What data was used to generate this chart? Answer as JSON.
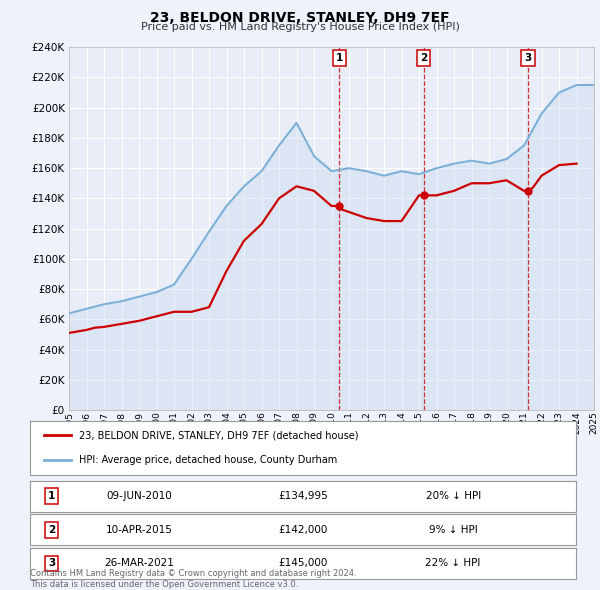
{
  "title": "23, BELDON DRIVE, STANLEY, DH9 7EF",
  "subtitle": "Price paid vs. HM Land Registry's House Price Index (HPI)",
  "bg_color": "#eef2fb",
  "plot_bg_color": "#e8edf8",
  "grid_color": "#ffffff",
  "hpi_color": "#7aaed6",
  "hpi_fill_color": "#c5d8ee",
  "price_color": "#cc0000",
  "ylim": [
    0,
    240000
  ],
  "yticks": [
    0,
    20000,
    40000,
    60000,
    80000,
    100000,
    120000,
    140000,
    160000,
    180000,
    200000,
    220000,
    240000
  ],
  "sale_years_float": [
    2010.44,
    2015.27,
    2021.23
  ],
  "sale_prices": [
    134995,
    142000,
    145000
  ],
  "sale_labels": [
    "1",
    "2",
    "3"
  ],
  "sale_pct_diff": [
    "20%",
    "9%",
    "22%"
  ],
  "sale_date_strs": [
    "09-JUN-2010",
    "10-APR-2015",
    "26-MAR-2021"
  ],
  "sale_price_strs": [
    "£134,995",
    "£142,000",
    "£145,000"
  ],
  "legend_label_red": "23, BELDON DRIVE, STANLEY, DH9 7EF (detached house)",
  "legend_label_blue": "HPI: Average price, detached house, County Durham",
  "footnote": "Contains HM Land Registry data © Crown copyright and database right 2024.\nThis data is licensed under the Open Government Licence v3.0.",
  "hpi_x": [
    1995.0,
    1995.5,
    1996.0,
    1996.5,
    1997.0,
    1997.5,
    1998.0,
    1998.5,
    1999.0,
    1999.5,
    2000.0,
    2000.5,
    2001.0,
    2001.5,
    2002.0,
    2002.5,
    2003.0,
    2003.5,
    2004.0,
    2004.5,
    2005.0,
    2005.5,
    2006.0,
    2006.5,
    2007.0,
    2007.5,
    2008.0,
    2008.5,
    2009.0,
    2009.5,
    2010.0,
    2010.5,
    2011.0,
    2011.5,
    2012.0,
    2012.5,
    2013.0,
    2013.5,
    2014.0,
    2014.5,
    2015.0,
    2015.5,
    2016.0,
    2016.5,
    2017.0,
    2017.5,
    2018.0,
    2018.5,
    2019.0,
    2019.5,
    2020.0,
    2020.5,
    2021.0,
    2021.5,
    2022.0,
    2022.5,
    2023.0,
    2023.5,
    2024.0,
    2024.5,
    2025.0
  ],
  "hpi_y": [
    64000,
    65500,
    67000,
    68500,
    70000,
    71000,
    72000,
    73500,
    75000,
    76500,
    78000,
    80500,
    83000,
    91500,
    100000,
    109000,
    118000,
    126500,
    135000,
    141500,
    148000,
    153000,
    158000,
    166500,
    175000,
    182500,
    190000,
    179000,
    168000,
    163000,
    158000,
    159000,
    160000,
    159000,
    158000,
    156500,
    155000,
    156500,
    158000,
    157000,
    156000,
    158000,
    160000,
    161500,
    163000,
    164000,
    165000,
    164000,
    163000,
    164500,
    166000,
    170500,
    175000,
    185500,
    196000,
    203000,
    210000,
    212500,
    215000,
    215000,
    215000
  ],
  "price_x": [
    1995.0,
    1995.5,
    1996.0,
    1996.5,
    1997.0,
    1997.5,
    1998.0,
    1998.5,
    1999.0,
    1999.5,
    2000.0,
    2000.5,
    2001.0,
    2001.5,
    2002.0,
    2002.5,
    2003.0,
    2003.5,
    2004.0,
    2004.5,
    2005.0,
    2005.5,
    2006.0,
    2006.5,
    2007.0,
    2007.5,
    2008.0,
    2008.5,
    2009.0,
    2009.5,
    2010.0,
    2010.44,
    2010.5,
    2011.0,
    2011.5,
    2012.0,
    2012.5,
    2013.0,
    2013.5,
    2014.0,
    2014.5,
    2015.0,
    2015.27,
    2015.5,
    2016.0,
    2016.5,
    2017.0,
    2017.5,
    2018.0,
    2018.5,
    2019.0,
    2019.5,
    2020.0,
    2020.5,
    2021.0,
    2021.23,
    2021.5,
    2022.0,
    2022.5,
    2023.0,
    2023.5,
    2024.0
  ],
  "price_y": [
    51000,
    52000,
    53000,
    54500,
    55000,
    56000,
    57000,
    58000,
    59000,
    60500,
    62000,
    63500,
    65000,
    65000,
    65000,
    66500,
    68000,
    80000,
    92000,
    102000,
    112000,
    117500,
    123000,
    131500,
    140000,
    144000,
    148000,
    146500,
    145000,
    140000,
    134995,
    134995,
    133000,
    131000,
    129000,
    127000,
    126000,
    125000,
    125000,
    125000,
    133500,
    142000,
    142000,
    142000,
    142000,
    143500,
    145000,
    147500,
    150000,
    150000,
    150000,
    151000,
    152000,
    148500,
    145000,
    145000,
    147000,
    155000,
    158500,
    162000,
    162500,
    163000
  ]
}
